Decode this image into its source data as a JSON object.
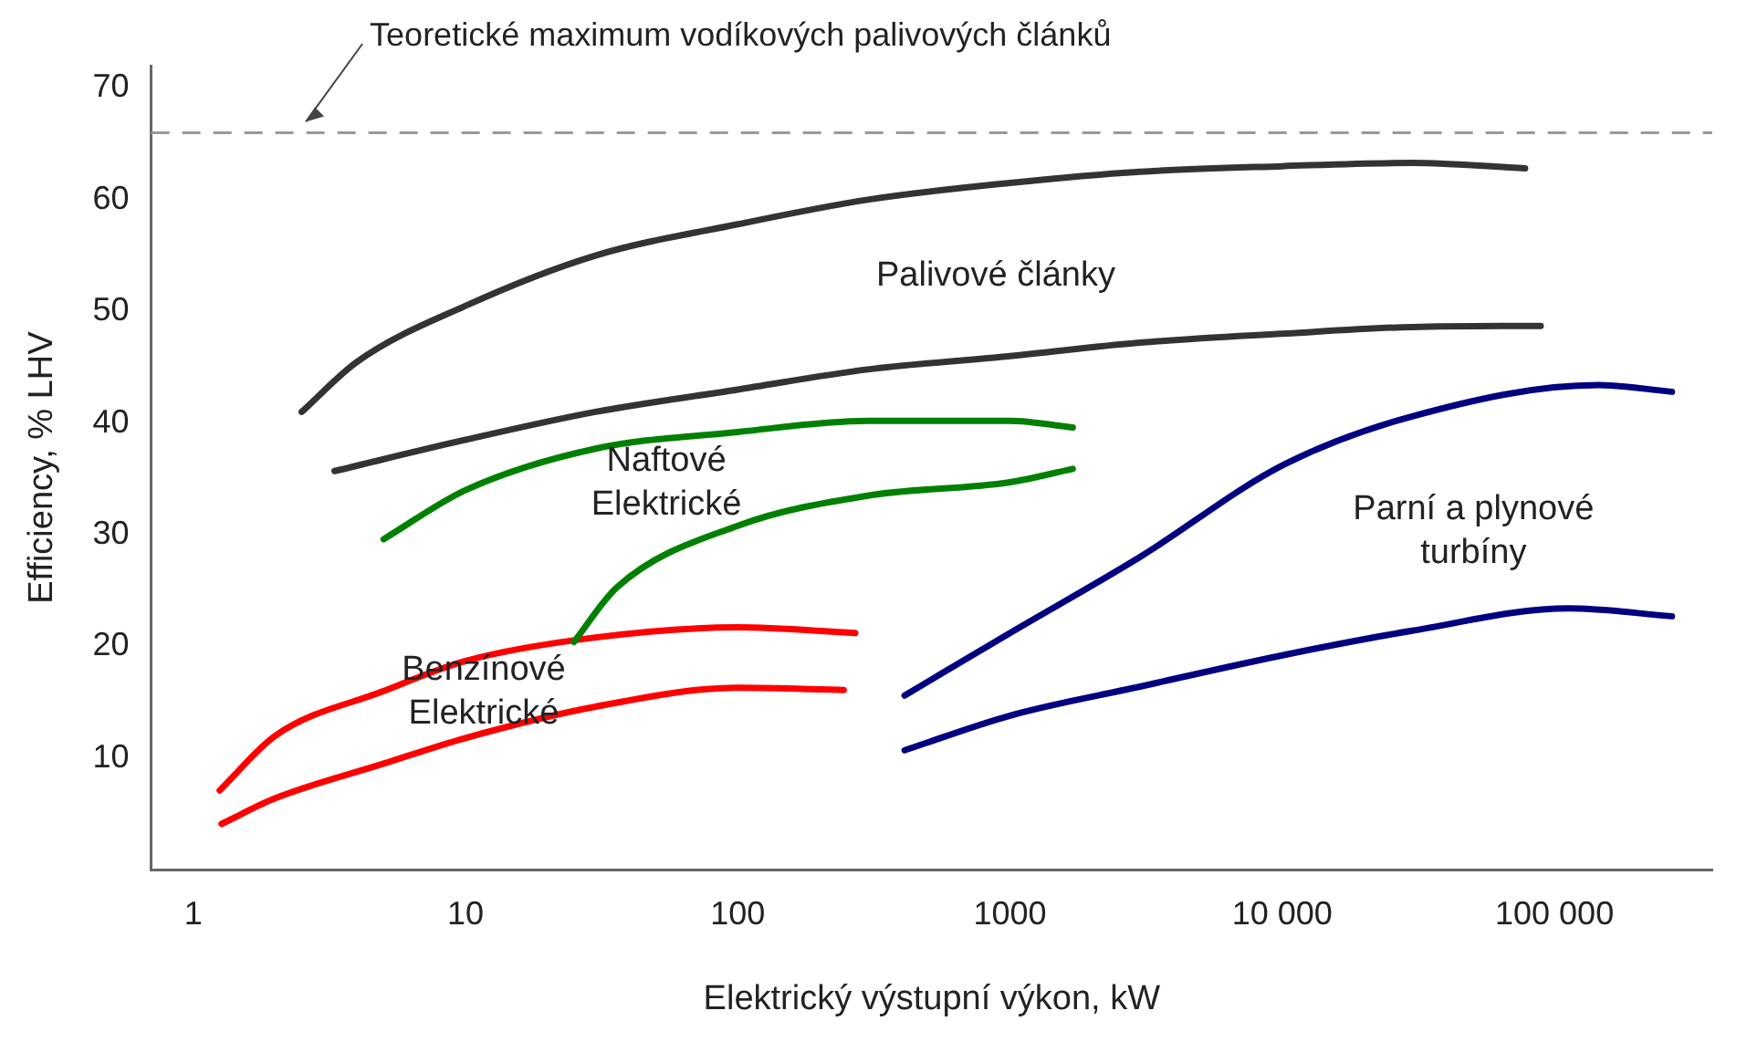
{
  "chart_data": {
    "type": "line",
    "xlabel": "Elektrický výstupní výkon, kW",
    "ylabel": "Efficiency, % LHV",
    "log": "x",
    "xlim": [
      0.7,
      380000
    ],
    "xticks": [
      1,
      10,
      100,
      1000,
      {
        "value": 10000,
        "label": "10 000"
      },
      {
        "value": 100000,
        "label": "100 000"
      }
    ],
    "ylim": [
      0,
      72
    ],
    "yticks": [
      10,
      20,
      30,
      40,
      50,
      60,
      70
    ],
    "grid": false,
    "legend": false,
    "marker": "none",
    "line_style": "solid",
    "series": [
      {
        "color": "#333333",
        "x": [
          2.5,
          4,
          10,
          30,
          100,
          300,
          1000,
          3000,
          10000,
          30000,
          78000
        ],
        "values": [
          41,
          45.5,
          50.5,
          55,
          57.8,
          60,
          61.5,
          62.5,
          63,
          63.3,
          62.8
        ]
      },
      {
        "color": "#333333",
        "x": [
          3.3,
          10,
          30,
          100,
          300,
          1000,
          3000,
          10000,
          30000,
          89000
        ],
        "values": [
          35.7,
          38.5,
          41,
          43,
          44.8,
          46,
          47.2,
          48,
          48.6,
          48.7
        ]
      },
      {
        "color": "#008000",
        "x": [
          5,
          10,
          30,
          100,
          300,
          1000,
          1700
        ],
        "values": [
          29.6,
          34,
          37.7,
          39.2,
          40.2,
          40.2,
          39.6
        ]
      },
      {
        "color": "#008000",
        "x": [
          25,
          36,
          100,
          300,
          1000,
          1700
        ],
        "values": [
          20.4,
          25.3,
          30.8,
          33.5,
          34.7,
          35.9
        ]
      },
      {
        "color": "#ff0000",
        "x": [
          1.25,
          2,
          5,
          10,
          30,
          100,
          270
        ],
        "values": [
          7.1,
          12,
          16,
          18.7,
          20.8,
          21.7,
          21.2
        ]
      },
      {
        "color": "#ff0000",
        "x": [
          1.27,
          2,
          5,
          10,
          30,
          100,
          245
        ],
        "values": [
          4.1,
          6.4,
          9.5,
          11.8,
          14.6,
          16.3,
          16.1
        ]
      },
      {
        "color": "#000080",
        "x": [
          410,
          1000,
          3000,
          10000,
          30000,
          145000,
          270000
        ],
        "values": [
          15.6,
          21.2,
          28,
          36.2,
          40.6,
          43.4,
          42.8
        ]
      },
      {
        "color": "#000080",
        "x": [
          410,
          1000,
          3000,
          10000,
          30000,
          113000,
          270000
        ],
        "values": [
          10.7,
          13.8,
          16.4,
          19.2,
          21.4,
          23.4,
          22.7
        ]
      }
    ],
    "ref_lines": [
      {
        "axis": "y",
        "value": 66,
        "label": "Teoretické maximum vodíkových palivových článků",
        "color": "#999999",
        "line_style": "dashed"
      }
    ],
    "annotations": [
      "Palivové články",
      "Naftové\nElektrické",
      "Benzínové\nElektrické",
      "Parní a plynové\nturbíny"
    ]
  }
}
